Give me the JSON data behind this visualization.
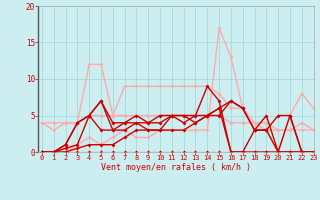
{
  "xlabel": "Vent moyen/en rafales ( km/h )",
  "xlim": [
    0,
    23
  ],
  "ylim": [
    0,
    20
  ],
  "yticks": [
    0,
    5,
    10,
    15,
    20
  ],
  "xticks": [
    0,
    1,
    2,
    3,
    4,
    5,
    6,
    7,
    8,
    9,
    10,
    11,
    12,
    13,
    14,
    15,
    16,
    17,
    18,
    19,
    20,
    21,
    22,
    23
  ],
  "background_color": "#cceef0",
  "grid_color": "#aadddd",
  "series": [
    {
      "x": [
        0,
        1,
        2,
        3,
        4,
        5,
        6,
        7,
        8,
        9,
        10,
        11,
        12,
        13,
        14,
        15,
        16,
        17,
        18,
        19,
        20,
        21,
        22,
        23
      ],
      "y": [
        4,
        4,
        4,
        4,
        5,
        5,
        5,
        5,
        5,
        5,
        5,
        5,
        5,
        5,
        5,
        5,
        4,
        4,
        4,
        3,
        3,
        3,
        3,
        3
      ],
      "color": "#ffaaaa",
      "lw": 1.0
    },
    {
      "x": [
        0,
        1,
        2,
        3,
        4,
        5,
        6,
        7,
        8,
        9,
        10,
        11,
        12,
        13,
        14,
        15,
        16,
        17,
        18,
        19,
        20,
        21,
        22,
        23
      ],
      "y": [
        4,
        3,
        4,
        4,
        12,
        12,
        5,
        9,
        9,
        9,
        9,
        9,
        9,
        9,
        9,
        8,
        6,
        6,
        4,
        4,
        3,
        3,
        4,
        3
      ],
      "color": "#ffaaaa",
      "lw": 1.0
    },
    {
      "x": [
        0,
        1,
        2,
        3,
        4,
        5,
        6,
        7,
        8,
        9,
        10,
        11,
        12,
        13,
        14,
        15,
        16,
        17,
        18,
        19,
        20,
        21,
        22,
        23
      ],
      "y": [
        0,
        0,
        0,
        1,
        2,
        1,
        2,
        3,
        2,
        2,
        3,
        3,
        3,
        3,
        3,
        17,
        13,
        6,
        3,
        3,
        0,
        5,
        8,
        6
      ],
      "color": "#ffaaaa",
      "lw": 1.0
    },
    {
      "x": [
        0,
        1,
        2,
        3,
        4,
        5,
        6,
        7,
        8,
        9,
        10,
        11,
        12,
        13,
        14,
        15,
        16,
        17,
        18,
        19,
        20,
        21,
        22,
        23
      ],
      "y": [
        0,
        0,
        0,
        0,
        0,
        0,
        0,
        0,
        0,
        0,
        0,
        0,
        0,
        0,
        0,
        0,
        0,
        0,
        0,
        0,
        0,
        0,
        0,
        0
      ],
      "color": "#cc0000",
      "lw": 0.8
    },
    {
      "x": [
        0,
        1,
        2,
        3,
        4,
        5,
        6,
        7,
        8,
        9,
        10,
        11,
        12,
        13,
        14,
        15,
        16,
        17,
        18,
        19,
        20,
        21,
        22,
        23
      ],
      "y": [
        0,
        0,
        0.5,
        1,
        5,
        7,
        3,
        3,
        4,
        3,
        3,
        5,
        4,
        5,
        9,
        7,
        0,
        0,
        3,
        5,
        0,
        5,
        0,
        0
      ],
      "color": "#cc0000",
      "lw": 1.0
    },
    {
      "x": [
        0,
        1,
        2,
        3,
        4,
        5,
        6,
        7,
        8,
        9,
        10,
        11,
        12,
        13,
        14,
        15,
        16,
        17,
        18,
        19,
        20,
        21,
        22,
        23
      ],
      "y": [
        0,
        0,
        1,
        4,
        5,
        7,
        4,
        4,
        5,
        4,
        4,
        5,
        5,
        5,
        5,
        5,
        7,
        6,
        3,
        3,
        0,
        0,
        0,
        0
      ],
      "color": "#cc0000",
      "lw": 1.0
    },
    {
      "x": [
        0,
        1,
        2,
        3,
        4,
        5,
        6,
        7,
        8,
        9,
        10,
        11,
        12,
        13,
        14,
        15,
        16,
        17,
        18,
        19,
        20,
        21,
        22,
        23
      ],
      "y": [
        0,
        0,
        0,
        0.5,
        1,
        1,
        1,
        2,
        3,
        3,
        3,
        3,
        3,
        4,
        5,
        6,
        0,
        0,
        0,
        0,
        0,
        0,
        0,
        0
      ],
      "color": "#cc0000",
      "lw": 1.0
    },
    {
      "x": [
        0,
        1,
        2,
        3,
        4,
        5,
        6,
        7,
        8,
        9,
        10,
        11,
        12,
        13,
        14,
        15,
        16,
        17,
        18,
        19,
        20,
        21,
        22,
        23
      ],
      "y": [
        0,
        0,
        1,
        4,
        5,
        3,
        3,
        4,
        4,
        4,
        5,
        5,
        5,
        4,
        5,
        6,
        7,
        6,
        3,
        3,
        5,
        5,
        0,
        0
      ],
      "color": "#cc0000",
      "lw": 1.0
    }
  ]
}
